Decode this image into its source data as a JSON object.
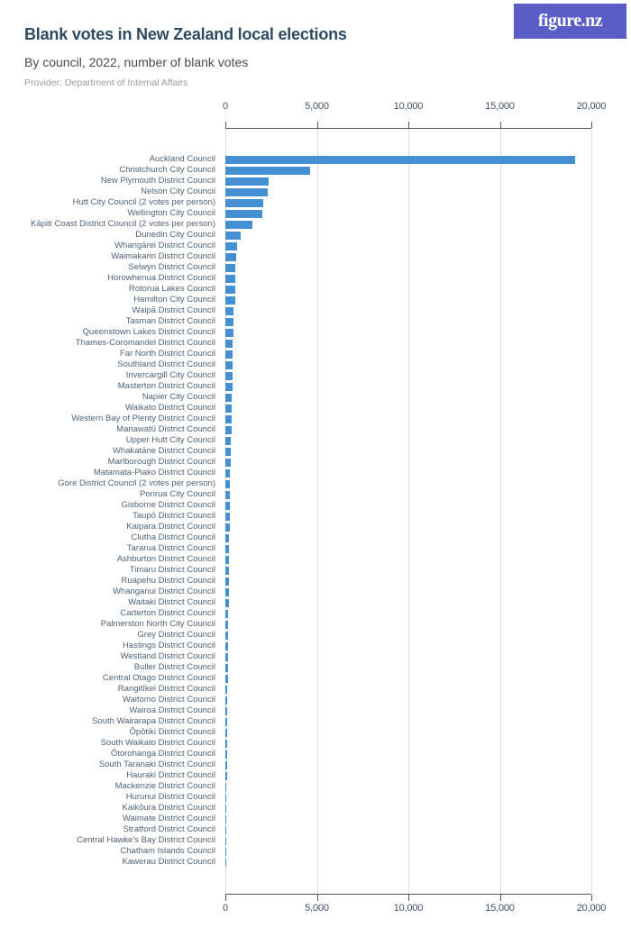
{
  "header": {
    "title": "Blank votes in New Zealand local elections",
    "subtitle": "By council, 2022, number of blank votes",
    "provider": "Provider: Department of Internal Affairs",
    "logo_text": "figure.nz"
  },
  "colors": {
    "bar": "#4490d2",
    "logo_bg": "#5a5ec4",
    "title_text": "#2c4a61",
    "axis_text": "#3f4f63",
    "category_label": "#4e6377",
    "gridline": "#dedede",
    "axis_line": "#4c5a68"
  },
  "chart_data": {
    "type": "bar",
    "orientation": "horizontal",
    "title": "Blank votes in New Zealand local elections",
    "subtitle": "By council, 2022, number of blank votes",
    "xlabel": "",
    "ylabel": "",
    "xlim": [
      0,
      20000
    ],
    "x_ticks": [
      0,
      5000,
      10000,
      15000,
      20000
    ],
    "x_tick_labels": [
      "0",
      "5,000",
      "10,000",
      "15,000",
      "20,000"
    ],
    "grid": true,
    "legend": false,
    "categories": [
      "Auckland Council",
      "Christchurch City Council",
      "New Plymouth District Council",
      "Nelson City Council",
      "Hutt City Council (2 votes per person)",
      "Wellington City Council",
      "Kāpiti Coast District Council (2 votes per person)",
      "Dunedin City Council",
      "Whangārei District Council",
      "Waimakariri District Council",
      "Selwyn District Council",
      "Horowhenua District Council",
      "Rotorua Lakes Council",
      "Hamilton City Council",
      "Waipā District Council",
      "Tasman District Council",
      "Queenstown Lakes District Council",
      "Thames-Coromandel District Council",
      "Far North District Council",
      "Southland District Council",
      "Invercargill City Council",
      "Masterton District Council",
      "Napier City Council",
      "Waikato District Council",
      "Western Bay of Plenty District Council",
      "Manawatū District Council",
      "Upper Hutt City Council",
      "Whakatāne District Council",
      "Marlborough District Council",
      "Matamata-Piako District Council",
      "Gore District Council (2 votes per person)",
      "Porirua City Council",
      "Gisborne District Council",
      "Taupō District Council",
      "Kaipara District Council",
      "Clutha District Council",
      "Tararua District Council",
      "Ashburton District Council",
      "Timaru District Council",
      "Ruapehu District Council",
      "Whanganui District Council",
      "Waitaki District Council",
      "Carterton District Council",
      "Palmerston North City Council",
      "Grey District Council",
      "Hastings District Council",
      "Westland District Council",
      "Buller District Council",
      "Central Otago District Council",
      "Rangitīkei District Council",
      "Waitomo District Council",
      "Wairoa District Council",
      "South Wairarapa District Council",
      "Ōpōtiki District Council",
      "South Waikato District Council",
      "Ōtorohanga District Council",
      "South Taranaki District Council",
      "Hauraki District Council",
      "Mackenzie District Council",
      "Hurunui District Council",
      "Kaikōura District Council",
      "Waimate District Council",
      "Stratford District Council",
      "Central Hawke's Bay District Council",
      "Chatham Islands Council",
      "Kawerau District Council"
    ],
    "values": [
      19100,
      4650,
      2370,
      2300,
      2050,
      2020,
      1490,
      850,
      620,
      575,
      555,
      545,
      535,
      530,
      445,
      430,
      425,
      410,
      400,
      390,
      385,
      370,
      360,
      350,
      340,
      330,
      310,
      300,
      290,
      270,
      255,
      245,
      240,
      230,
      225,
      215,
      210,
      200,
      195,
      185,
      180,
      175,
      165,
      160,
      150,
      145,
      140,
      135,
      130,
      120,
      115,
      110,
      105,
      100,
      95,
      90,
      85,
      80,
      70,
      65,
      60,
      50,
      45,
      35,
      15,
      10
    ]
  }
}
